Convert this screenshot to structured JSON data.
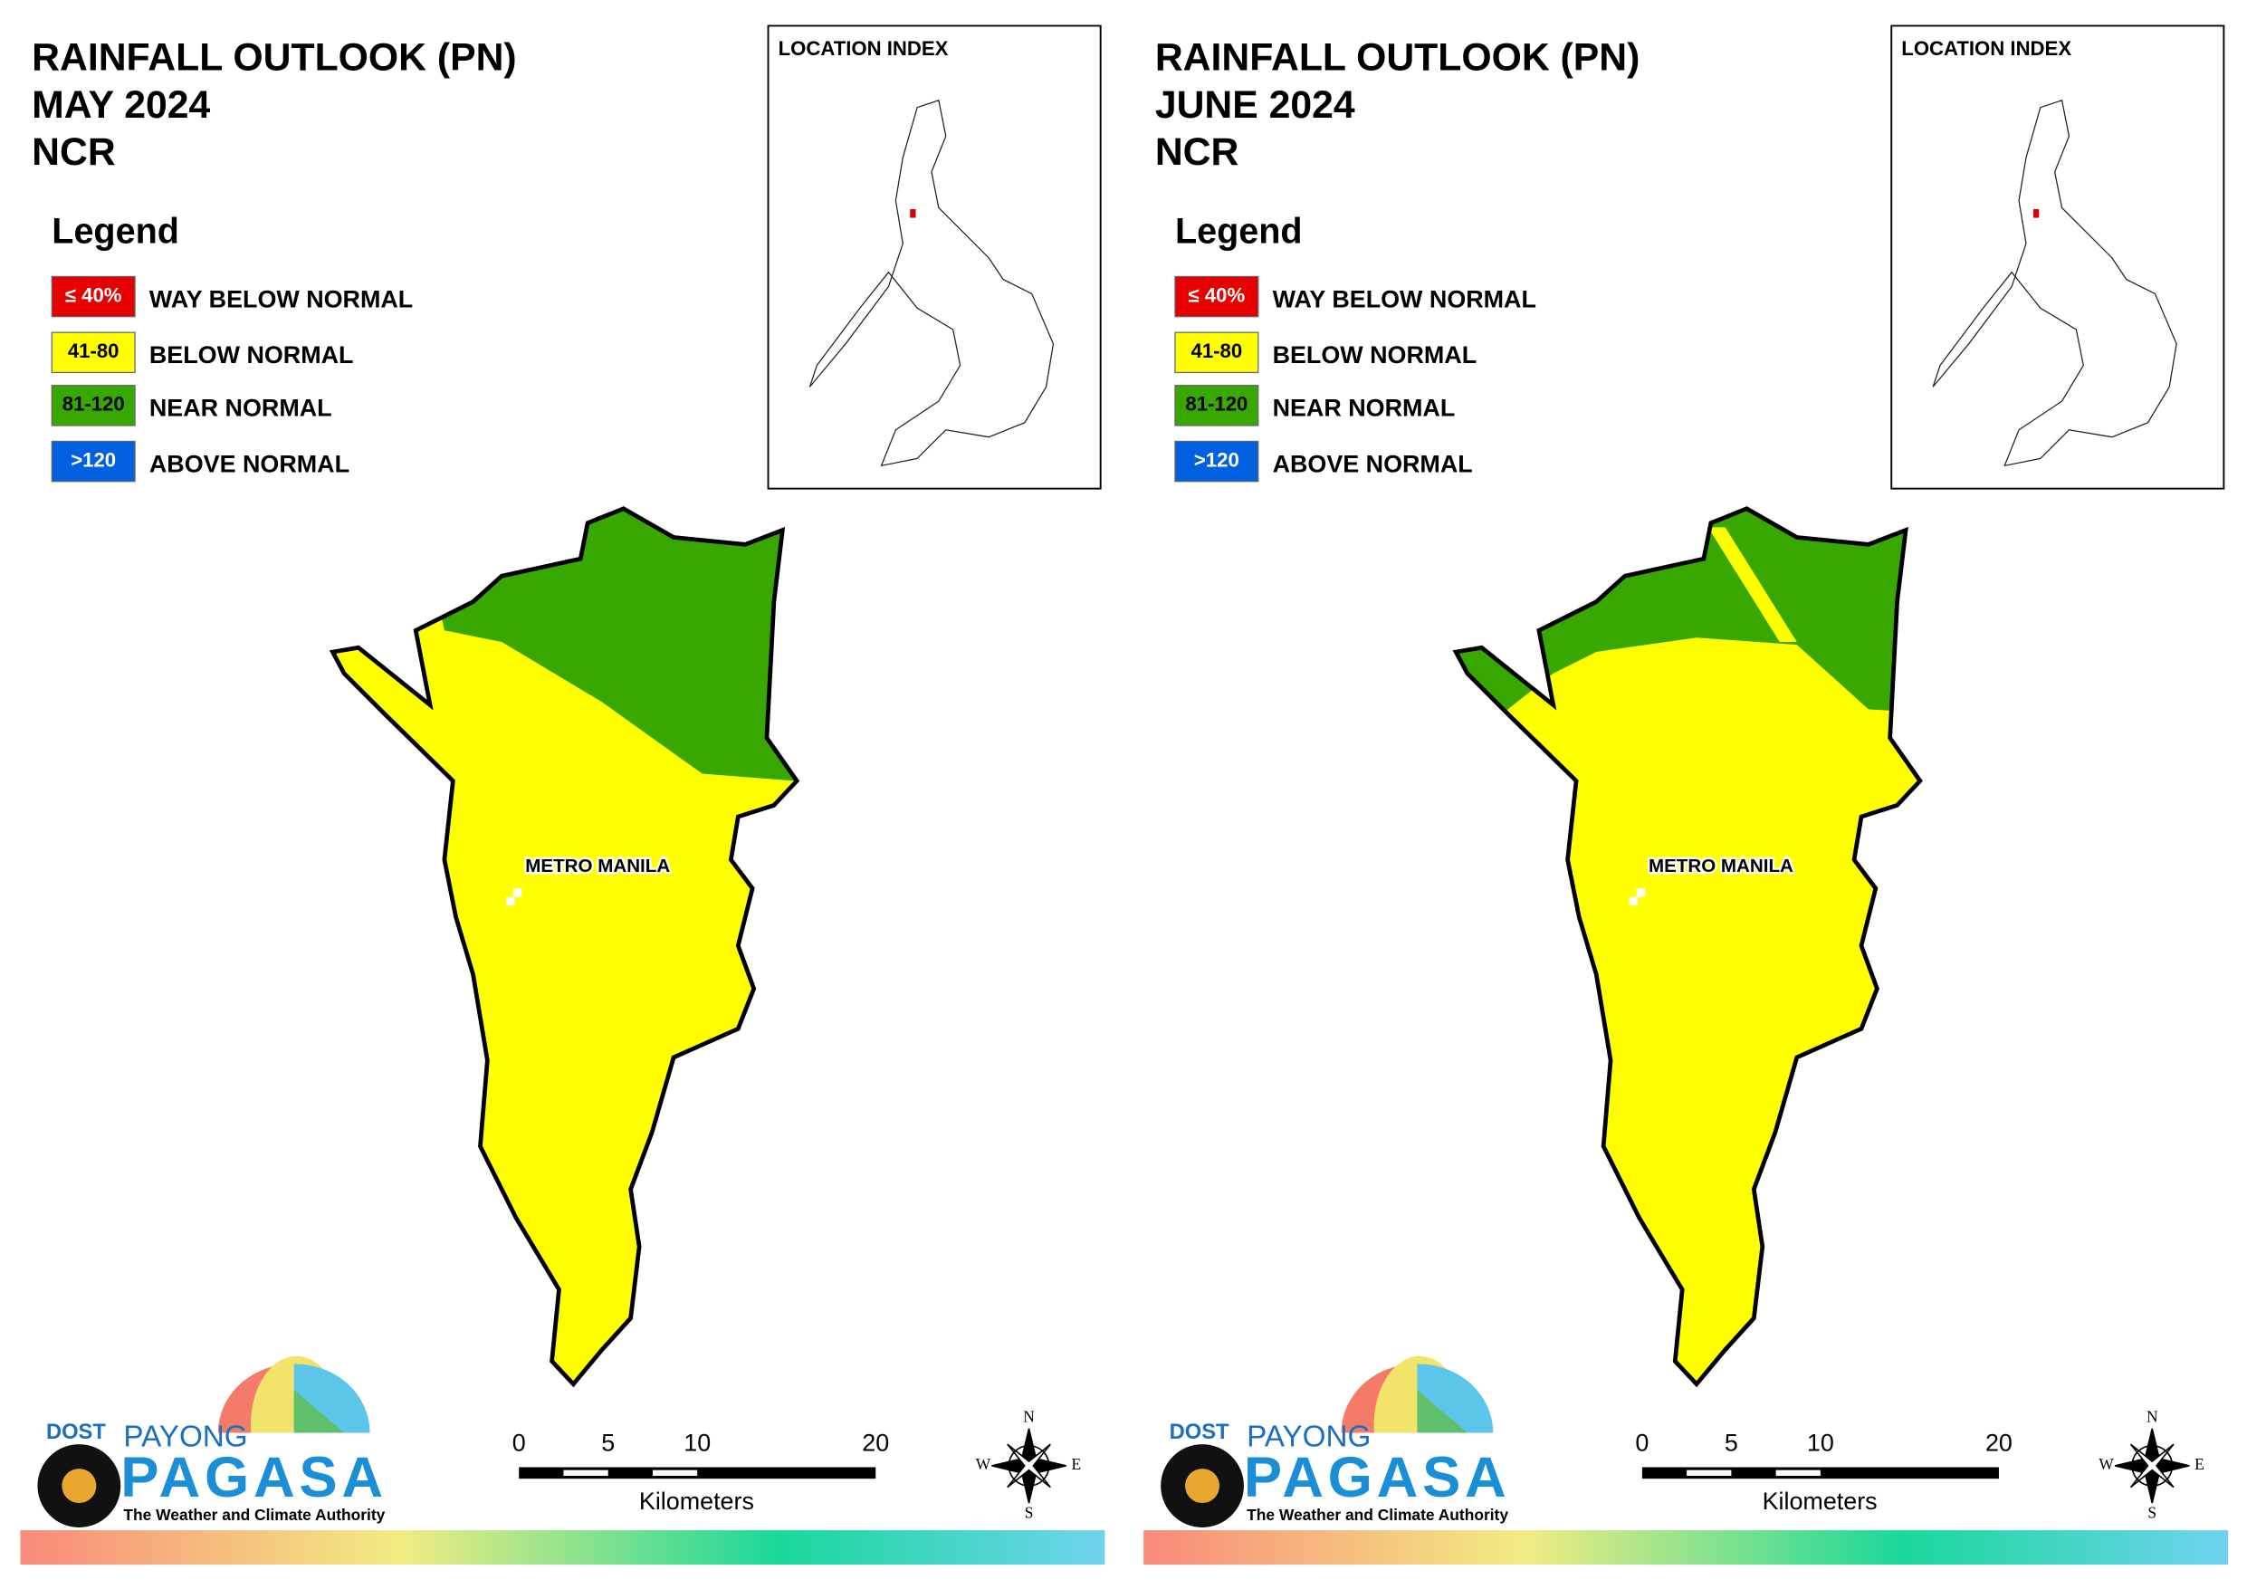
{
  "panels": [
    {
      "title": [
        "RAINFALL OUTLOOK (PN)",
        "MAY 2024",
        "NCR"
      ],
      "location_index": "LOCATION INDEX",
      "legend": {
        "title": "Legend",
        "items": [
          {
            "swatch": "≤ 40%",
            "label": "WAY BELOW NORMAL",
            "color": "#e60000"
          },
          {
            "swatch": "41-80",
            "label": "BELOW NORMAL",
            "color": "#ffff00"
          },
          {
            "swatch": "81-120",
            "label": "NEAR NORMAL",
            "color": "#38a800"
          },
          {
            "swatch": ">120",
            "label": "ABOVE NORMAL",
            "color": "#0060e0"
          }
        ]
      },
      "map_label": "METRO MANILA",
      "scale": {
        "ticks": [
          0,
          5,
          10,
          20
        ],
        "unit": "Kilometers"
      },
      "compass": [
        "N",
        "E",
        "S",
        "W"
      ],
      "logo": {
        "agency": "DOST",
        "brand_top": "PAYONG",
        "brand": "PAGASA",
        "tagline": "The Weather and Climate Authority"
      }
    },
    {
      "title": [
        "RAINFALL OUTLOOK (PN)",
        "JUNE 2024",
        "NCR"
      ],
      "location_index": "LOCATION INDEX",
      "legend": {
        "title": "Legend",
        "items": [
          {
            "swatch": "≤ 40%",
            "label": "WAY BELOW NORMAL",
            "color": "#e60000"
          },
          {
            "swatch": "41-80",
            "label": "BELOW NORMAL",
            "color": "#ffff00"
          },
          {
            "swatch": "81-120",
            "label": "NEAR NORMAL",
            "color": "#38a800"
          },
          {
            "swatch": ">120",
            "label": "ABOVE NORMAL",
            "color": "#0060e0"
          }
        ]
      },
      "map_label": "METRO MANILA",
      "scale": {
        "ticks": [
          0,
          5,
          10,
          20
        ],
        "unit": "Kilometers"
      },
      "compass": [
        "N",
        "E",
        "S",
        "W"
      ],
      "logo": {
        "agency": "DOST",
        "brand_top": "PAYONG",
        "brand": "PAGASA",
        "tagline": "The Weather and Climate Authority"
      }
    }
  ]
}
